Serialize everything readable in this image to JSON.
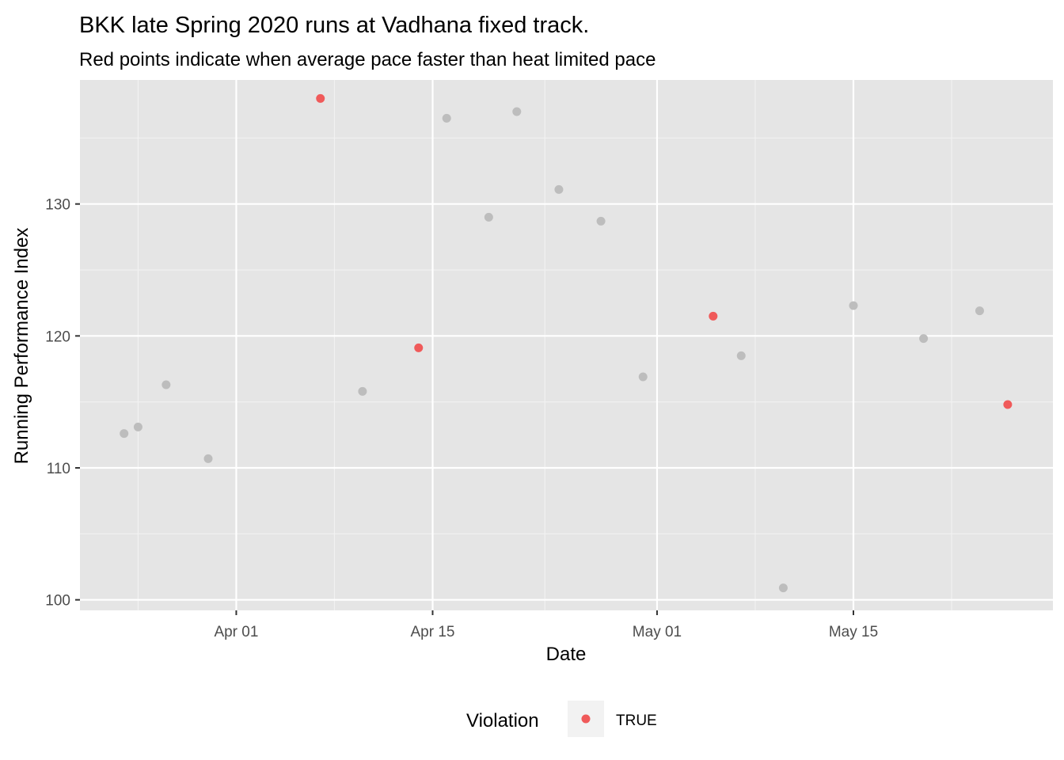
{
  "chart_data": {
    "type": "scatter",
    "title": "BKK late Spring 2020 runs at Vadhana fixed track.",
    "subtitle": "Red points indicate when average pace faster than heat limited pace",
    "xlabel": "Date",
    "ylabel": "Running Performance Index",
    "x_type": "date",
    "xlim": [
      "2020-03-24",
      "2020-05-28"
    ],
    "ylim": [
      99.2,
      139.4
    ],
    "x_ticks": [
      {
        "date": "2020-04-01",
        "label": "Apr 01"
      },
      {
        "date": "2020-04-15",
        "label": "Apr 15"
      },
      {
        "date": "2020-05-01",
        "label": "May 01"
      },
      {
        "date": "2020-05-15",
        "label": "May 15"
      }
    ],
    "x_minor_ticks": [
      "2020-03-25",
      "2020-04-08",
      "2020-04-23",
      "2020-05-08",
      "2020-05-22"
    ],
    "y_ticks": [
      100,
      110,
      120,
      130
    ],
    "y_minor_ticks": [
      105,
      115,
      125,
      135
    ],
    "grid": true,
    "panel_background": "#e5e5e5",
    "legend": {
      "title": "Violation",
      "position": "bottom",
      "entries": [
        {
          "label": "TRUE",
          "color": "#f05a5a"
        }
      ]
    },
    "colors": {
      "violation": "#f05a5a",
      "normal": "#bdbdbd"
    },
    "points": [
      {
        "x": "2020-03-24",
        "y": 112.6,
        "violation": false
      },
      {
        "x": "2020-03-25",
        "y": 113.1,
        "violation": false
      },
      {
        "x": "2020-03-27",
        "y": 116.3,
        "violation": false
      },
      {
        "x": "2020-03-30",
        "y": 110.7,
        "violation": false
      },
      {
        "x": "2020-04-07",
        "y": 138.0,
        "violation": true
      },
      {
        "x": "2020-04-10",
        "y": 115.8,
        "violation": false
      },
      {
        "x": "2020-04-14",
        "y": 119.1,
        "violation": true
      },
      {
        "x": "2020-04-16",
        "y": 136.5,
        "violation": false
      },
      {
        "x": "2020-04-19",
        "y": 129.0,
        "violation": false
      },
      {
        "x": "2020-04-21",
        "y": 137.0,
        "violation": false
      },
      {
        "x": "2020-04-24",
        "y": 131.1,
        "violation": false
      },
      {
        "x": "2020-04-27",
        "y": 128.7,
        "violation": false
      },
      {
        "x": "2020-04-30",
        "y": 116.9,
        "violation": false
      },
      {
        "x": "2020-05-05",
        "y": 121.5,
        "violation": true
      },
      {
        "x": "2020-05-07",
        "y": 118.5,
        "violation": false
      },
      {
        "x": "2020-05-10",
        "y": 100.9,
        "violation": false
      },
      {
        "x": "2020-05-15",
        "y": 122.3,
        "violation": false
      },
      {
        "x": "2020-05-20",
        "y": 119.8,
        "violation": false
      },
      {
        "x": "2020-05-24",
        "y": 121.9,
        "violation": false
      },
      {
        "x": "2020-05-26",
        "y": 114.8,
        "violation": true
      }
    ]
  }
}
